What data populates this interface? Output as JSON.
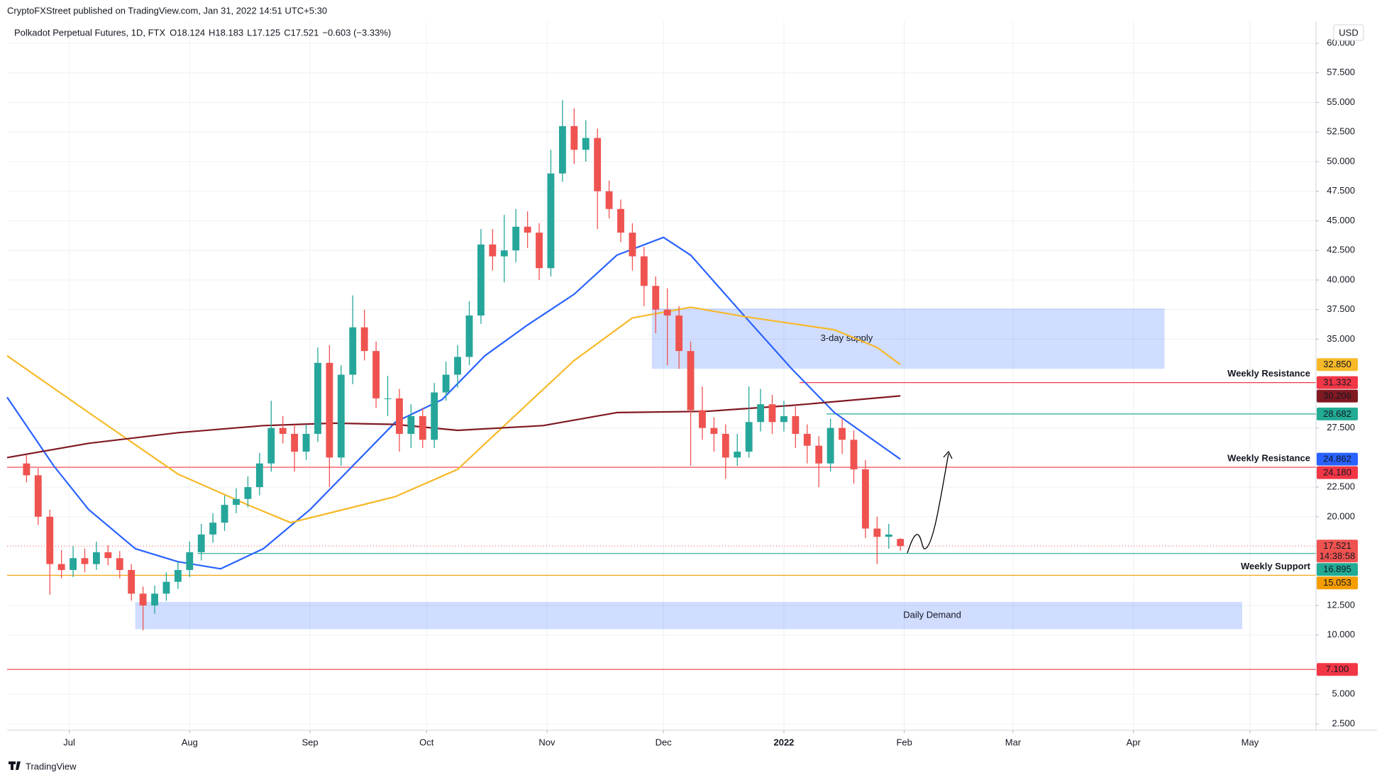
{
  "header": {
    "publisher": "CryptoFXStreet published on TradingView.com, Jan 31, 2022 14:51 UTC+5:30",
    "currency": "USD",
    "brand": "TradingView"
  },
  "chart_data": {
    "type": "candlestick",
    "title": "Polkadot Perpetual Futures, 1D, FTX",
    "ohlc_prefixes": [
      "O",
      "H",
      "L",
      "C"
    ],
    "change": "−0.603 (−3.33%)",
    "up_color": "#26a69a",
    "down_color": "#ef5350",
    "x": [
      -11,
      -8,
      -5,
      -2,
      1,
      4,
      7,
      10,
      13,
      16,
      19,
      22,
      25,
      28,
      31,
      34,
      37,
      40,
      43,
      46,
      49,
      52,
      55,
      58,
      61,
      64,
      67,
      70,
      73,
      76,
      79,
      82,
      85,
      88,
      91,
      94,
      97,
      100,
      103,
      106,
      109,
      112,
      115,
      118,
      121,
      124,
      127,
      130,
      133,
      136,
      139,
      142,
      145,
      148,
      151,
      154,
      157,
      160,
      163,
      166,
      169,
      172,
      175,
      178,
      181,
      184,
      187,
      190,
      193,
      196,
      199,
      202,
      205,
      208,
      211,
      214
    ],
    "open": [
      24.5,
      23.5,
      20,
      16,
      15.5,
      16.5,
      16,
      17,
      16.5,
      15.5,
      13.5,
      12.5,
      13.5,
      14.5,
      15.5,
      17,
      18.5,
      19.5,
      21,
      21.5,
      22.5,
      24.5,
      27.5,
      27,
      25.5,
      27,
      33,
      25,
      32,
      36,
      34,
      30,
      30,
      27,
      28.5,
      26.5,
      30.5,
      32,
      33.5,
      37,
      43,
      42,
      42.5,
      44.5,
      44,
      41,
      49,
      53,
      51,
      52,
      47.5,
      46,
      44,
      42,
      39.5,
      37.5,
      37,
      34,
      29,
      27.5,
      27,
      25,
      25.5,
      28,
      29.5,
      28,
      28.5,
      27,
      26,
      24.5,
      27.5,
      26.5,
      24,
      19,
      18.3,
      18.124
    ],
    "high": [
      25.2,
      24.1,
      20.6,
      17.2,
      17.5,
      17.3,
      17.9,
      17.6,
      17.1,
      16,
      14.1,
      14.2,
      15.3,
      16.2,
      17.9,
      19.4,
      20.3,
      21.8,
      22.4,
      23.4,
      25.4,
      29.8,
      28.5,
      27.8,
      27.8,
      34.3,
      34.5,
      32.8,
      38.7,
      37.5,
      34.8,
      31.9,
      30.8,
      29.5,
      29.2,
      31.3,
      33.1,
      34.5,
      38.2,
      44.3,
      44.3,
      45.5,
      46,
      45.8,
      44.8,
      51,
      55.2,
      54.5,
      53.5,
      52.8,
      48.4,
      46.8,
      44.8,
      42.8,
      40.3,
      39.3,
      37.8,
      34.8,
      31,
      28.4,
      27.8,
      27,
      31,
      30.8,
      30.3,
      29.8,
      29.3,
      27.8,
      26.8,
      28.3,
      28.3,
      27.3,
      24.8,
      20,
      19.4,
      18.183
    ],
    "low": [
      22.9,
      19.3,
      13.4,
      14.8,
      14.9,
      15.3,
      15.5,
      15.9,
      14.8,
      12.9,
      10.4,
      11.8,
      12.9,
      13.9,
      14.9,
      16.3,
      17.8,
      18.8,
      20.3,
      20.8,
      21.8,
      23.8,
      26.2,
      23.8,
      24.8,
      26.3,
      22.5,
      24.3,
      31.2,
      33.2,
      29.2,
      28.5,
      25.5,
      25.8,
      25.8,
      25.8,
      29.8,
      30.9,
      32.8,
      36.3,
      40.8,
      39.8,
      41.5,
      42.7,
      40,
      40.3,
      48.3,
      49.8,
      50,
      44.3,
      45.2,
      43.2,
      40.8,
      37.8,
      35.5,
      32.8,
      32.5,
      24.3,
      26.5,
      25.5,
      23.2,
      24.3,
      25,
      27.2,
      27,
      27.2,
      25.8,
      24.5,
      22.5,
      23.8,
      25.3,
      22.8,
      18.2,
      16,
      17.3,
      17.125
    ],
    "close": [
      23.5,
      20,
      16,
      15.5,
      16.5,
      16,
      17,
      16.5,
      15.5,
      13.5,
      12.5,
      13.5,
      14.5,
      15.5,
      17,
      18.5,
      19.5,
      21,
      21.5,
      22.5,
      24.5,
      27.5,
      27,
      25.5,
      27,
      33,
      25,
      32,
      36,
      34,
      30,
      30,
      27,
      28.5,
      26.5,
      30.5,
      32,
      33.5,
      37,
      43,
      42,
      42.5,
      44.5,
      44,
      41,
      49,
      53,
      51,
      52,
      47.5,
      46,
      44,
      42,
      39.5,
      37.5,
      37,
      34,
      29,
      27.5,
      27,
      25,
      25.5,
      28,
      29.5,
      28,
      28.5,
      27,
      26,
      24.5,
      27.5,
      26.5,
      24,
      19,
      18.3,
      18.5,
      17.521
    ],
    "countdown": "14:38:58",
    "moving_averages": [
      {
        "color": "#2962ff",
        "x": [
          -16,
          -4,
          5,
          17,
          28,
          39,
          50,
          62,
          73,
          84,
          96,
          107,
          118,
          130,
          141,
          153,
          160,
          174,
          186,
          197,
          214
        ],
        "values": [
          30.1,
          24.3,
          20.6,
          17.3,
          16.2,
          15.6,
          17.3,
          20.6,
          24.3,
          28,
          29.9,
          33.6,
          36.2,
          38.8,
          42.1,
          43.6,
          42.1,
          36.9,
          32.5,
          28.8,
          24.862
        ],
        "end_label": "24.862"
      },
      {
        "color": "#f7b928",
        "x": [
          -16,
          5,
          28,
          46,
          57,
          73,
          84,
          100,
          113,
          130,
          145,
          160,
          174,
          197,
          208,
          214
        ],
        "values": [
          33.6,
          28.8,
          23.6,
          21,
          19.5,
          20.8,
          21.7,
          24,
          28,
          33.2,
          36.8,
          37.7,
          36.9,
          35.8,
          34.3,
          32.85
        ],
        "end_label": "32.850"
      },
      {
        "color": "#801922",
        "x": [
          -16,
          5,
          28,
          50,
          68,
          84,
          100,
          122,
          141,
          164,
          186,
          214
        ],
        "values": [
          25,
          26.2,
          27.1,
          27.7,
          27.9,
          27.8,
          27.3,
          27.7,
          28.8,
          28.9,
          29.4,
          30.206
        ],
        "end_label": "30.206"
      }
    ],
    "levels": [
      {
        "value": 31.332,
        "value_label": "31.332",
        "color": "#f23645",
        "start": 188,
        "label": "Weekly Resistance"
      },
      {
        "value": 28.682,
        "value_label": "28.682",
        "color": "#22ab94",
        "start": 195
      },
      {
        "value": 24.18,
        "value_label": "24.180",
        "color": "#f23645",
        "label": "Weekly Resistance"
      },
      {
        "value": 16.895,
        "value_label": "16.895",
        "color": "#22ab94",
        "start": 33
      },
      {
        "value": 15.053,
        "value_label": "15.053",
        "color": "#f59d00",
        "label": "Weekly Support"
      },
      {
        "value": 7.1,
        "value_label": "7.100",
        "color": "#f23645"
      }
    ],
    "zones": [
      {
        "x": [
          150,
          282
        ],
        "y": [
          32.5,
          37.6
        ],
        "label": "3-day supply"
      },
      {
        "x": [
          17,
          302
        ],
        "y": [
          10.5,
          12.8
        ],
        "label": "Daily Demand"
      }
    ],
    "xlim": [
      -16,
      321
    ],
    "xticks": [
      {
        "value": 0,
        "label": "Jul"
      },
      {
        "value": 31,
        "label": "Aug"
      },
      {
        "value": 62,
        "label": "Sep"
      },
      {
        "value": 92,
        "label": "Oct"
      },
      {
        "value": 123,
        "label": "Nov"
      },
      {
        "value": 153,
        "label": "Dec"
      },
      {
        "value": 184,
        "label": "2022"
      },
      {
        "value": 215,
        "label": "Feb"
      },
      {
        "value": 243,
        "label": "Mar"
      },
      {
        "value": 274,
        "label": "Apr"
      },
      {
        "value": 304,
        "label": "May"
      }
    ],
    "ylim": [
      1.96,
      61.44
    ],
    "yticks": [
      {
        "value": 60,
        "label": "60.000"
      },
      {
        "value": 57.5,
        "label": "57.500"
      },
      {
        "value": 55,
        "label": "55.000"
      },
      {
        "value": 52.5,
        "label": "52.500"
      },
      {
        "value": 50,
        "label": "50.000"
      },
      {
        "value": 47.5,
        "label": "47.500"
      },
      {
        "value": 45,
        "label": "45.000"
      },
      {
        "value": 42.5,
        "label": "42.500"
      },
      {
        "value": 40,
        "label": "40.000"
      },
      {
        "value": 37.5,
        "label": "37.500"
      },
      {
        "value": 35,
        "label": "35.000"
      },
      {
        "value": 27.5,
        "label": "27.500"
      },
      {
        "value": 22.5,
        "label": "22.500"
      },
      {
        "value": 20,
        "label": "20.000"
      },
      {
        "value": 12.5,
        "label": "12.500"
      },
      {
        "value": 10,
        "label": "10.000"
      },
      {
        "value": 5,
        "label": "5.000"
      },
      {
        "value": 2.5,
        "label": "2.500"
      }
    ],
    "grid": true
  }
}
